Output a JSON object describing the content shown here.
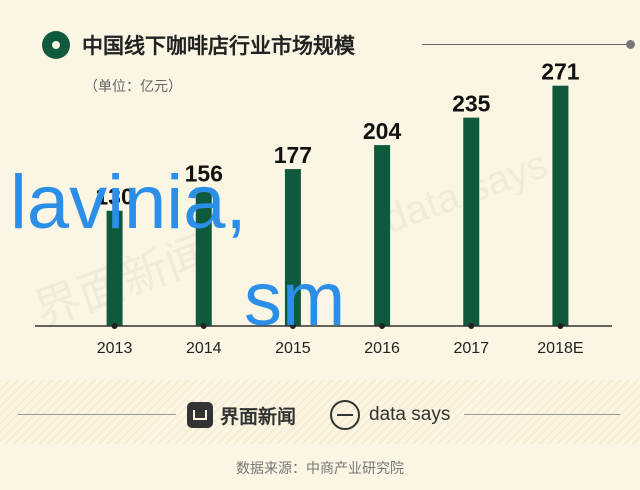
{
  "header": {
    "title": "中国线下咖啡店行业市场规模",
    "unit": "（单位：亿元）"
  },
  "chart_data": {
    "type": "bar",
    "title": "中国线下咖啡店行业市场规模",
    "ylabel": "",
    "xlabel": "",
    "categories": [
      "2013",
      "2014",
      "2015",
      "2016",
      "2017",
      "2018E"
    ],
    "values": [
      130,
      156,
      177,
      204,
      235,
      271
    ],
    "value_labels": [
      "130",
      "156",
      "177",
      "204",
      "235",
      "271"
    ],
    "ylim": [
      0,
      300
    ],
    "bar_color": "#0f5a3c",
    "grid": false,
    "legend": "none"
  },
  "overlay": {
    "line1": "lavinia,",
    "line2": "sm",
    "color": "#2b8fe8"
  },
  "watermarks": {
    "left": "界面新闻",
    "right": "data says"
  },
  "footer": {
    "brand1": "界面新闻",
    "brand2": "data says",
    "source": "数据来源：中商产业研究院"
  }
}
